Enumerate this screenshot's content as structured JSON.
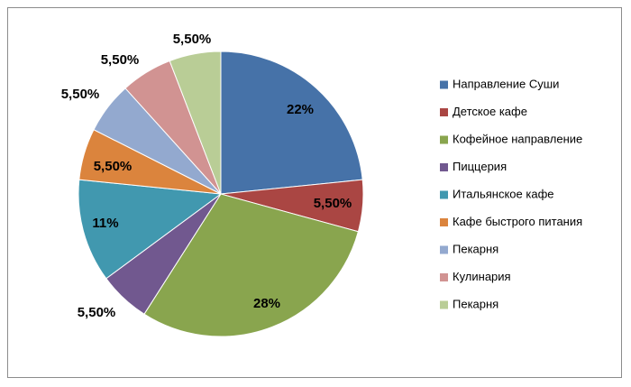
{
  "chart_data": {
    "type": "pie",
    "title": "",
    "legend_position": "right",
    "slices": [
      {
        "label": "Направление Суши",
        "value": 22,
        "display": "22%",
        "color": "#4672A8"
      },
      {
        "label": "Детское кафе",
        "value": 5.5,
        "display": "5,50%",
        "color": "#AA4643"
      },
      {
        "label": "Кофейное направление",
        "value": 28,
        "display": "28%",
        "color": "#89A54E"
      },
      {
        "label": "Пиццерия",
        "value": 5.5,
        "display": "5,50%",
        "color": "#71588F"
      },
      {
        "label": "Итальянское кафе",
        "value": 11,
        "display": "11%",
        "color": "#4198AF"
      },
      {
        "label": "Кафе быстрого питания",
        "value": 5.5,
        "display": "5,50%",
        "color": "#DB843D"
      },
      {
        "label": "Пекарня",
        "value": 5.5,
        "display": "5,50%",
        "color": "#93A9CF"
      },
      {
        "label": "Кулинария",
        "value": 5.5,
        "display": "5,50%",
        "color": "#D19392"
      },
      {
        "label": "Пекарня",
        "value": 5.5,
        "display": "5,50%",
        "color": "#B9CD96"
      }
    ]
  }
}
